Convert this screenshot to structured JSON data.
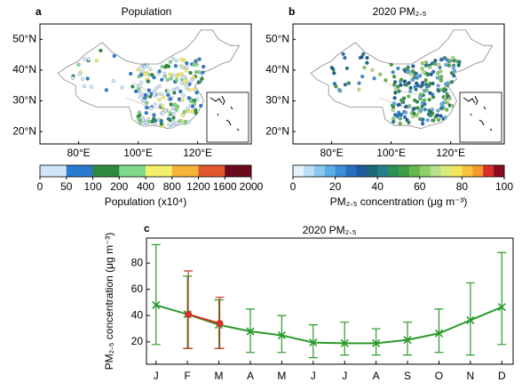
{
  "chart_data": [
    {
      "type": "map",
      "panel": "a",
      "title": "Population",
      "xlim": [
        67,
        138
      ],
      "ylim": [
        16,
        55
      ],
      "xticks": [
        {
          "value": 80,
          "label": "80°E"
        },
        {
          "value": 100,
          "label": "100°E"
        },
        {
          "value": 120,
          "label": "120°E"
        }
      ],
      "yticks": [
        {
          "value": 20,
          "label": "20°N"
        },
        {
          "value": 30,
          "label": "30°N"
        },
        {
          "value": 40,
          "label": "40°N"
        },
        {
          "value": 50,
          "label": "50°N"
        }
      ],
      "colorbar": {
        "label": "Population (x10⁴)",
        "ticks": [
          0,
          50,
          100,
          200,
          400,
          800,
          1200,
          1600,
          2000
        ],
        "colors": [
          "#cfe6f8",
          "#2a7bd0",
          "#2e8b3e",
          "#7fd98a",
          "#f2ef6a",
          "#f4b43a",
          "#e2582e",
          "#6b0a1e"
        ]
      }
    },
    {
      "type": "map",
      "panel": "b",
      "title": "2020 PM₂.₅",
      "xlim": [
        67,
        138
      ],
      "ylim": [
        16,
        55
      ],
      "xticks": [
        {
          "value": 80,
          "label": "80°E"
        },
        {
          "value": 100,
          "label": "100°E"
        },
        {
          "value": 120,
          "label": "120°E"
        }
      ],
      "yticks": [
        {
          "value": 20,
          "label": "20°N"
        },
        {
          "value": 30,
          "label": "30°N"
        },
        {
          "value": 40,
          "label": "40°N"
        },
        {
          "value": 50,
          "label": "50°N"
        }
      ],
      "colorbar": {
        "label": "PM₂.₅ concentration (μg m⁻³)",
        "lim": [
          0,
          100
        ],
        "ticks": [
          0,
          20,
          40,
          60,
          80,
          100
        ],
        "colors": [
          "#e8f4fb",
          "#b9def5",
          "#8cc7ee",
          "#5daee4",
          "#3b8fd5",
          "#2a6fbf",
          "#1f5a9e",
          "#1a6a7a",
          "#23808a",
          "#2c8f55",
          "#3f9f46",
          "#66b84f",
          "#8fd06a",
          "#b7e08a",
          "#d9ea7e",
          "#f3e45c",
          "#f8c23d",
          "#f59a2c",
          "#d7302a",
          "#8c0b1f"
        ]
      }
    },
    {
      "type": "line",
      "panel": "c",
      "title": "2020 PM₂.₅",
      "ylabel": "PM₂.₅ concentration (μg m⁻³)",
      "categories": [
        "J",
        "F",
        "M",
        "A",
        "M",
        "J",
        "J",
        "A",
        "S",
        "O",
        "N",
        "D"
      ],
      "ylim": [
        3,
        99
      ],
      "yticks": [
        20,
        40,
        60,
        80
      ],
      "series": [
        {
          "color": "#2a9a2a",
          "marker": "x",
          "values": [
            48,
            41,
            33,
            28,
            25,
            19.5,
            19,
            19,
            21.5,
            26.5,
            36.5,
            46.5
          ],
          "low": [
            18,
            15,
            15,
            12,
            12,
            8,
            10,
            10,
            10,
            12,
            10,
            18
          ],
          "high": [
            94,
            70,
            52,
            45,
            40,
            33,
            35,
            30,
            35,
            45,
            65,
            88
          ]
        },
        {
          "color": "#d0342c",
          "marker": "o",
          "values": [
            null,
            41,
            34,
            null,
            null,
            null,
            null,
            null,
            null,
            null,
            null,
            null
          ],
          "low": [
            null,
            15,
            15,
            null,
            null,
            null,
            null,
            null,
            null,
            null,
            null,
            null
          ],
          "high": [
            null,
            74,
            54,
            null,
            null,
            null,
            null,
            null,
            null,
            null,
            null,
            null
          ]
        }
      ]
    }
  ]
}
